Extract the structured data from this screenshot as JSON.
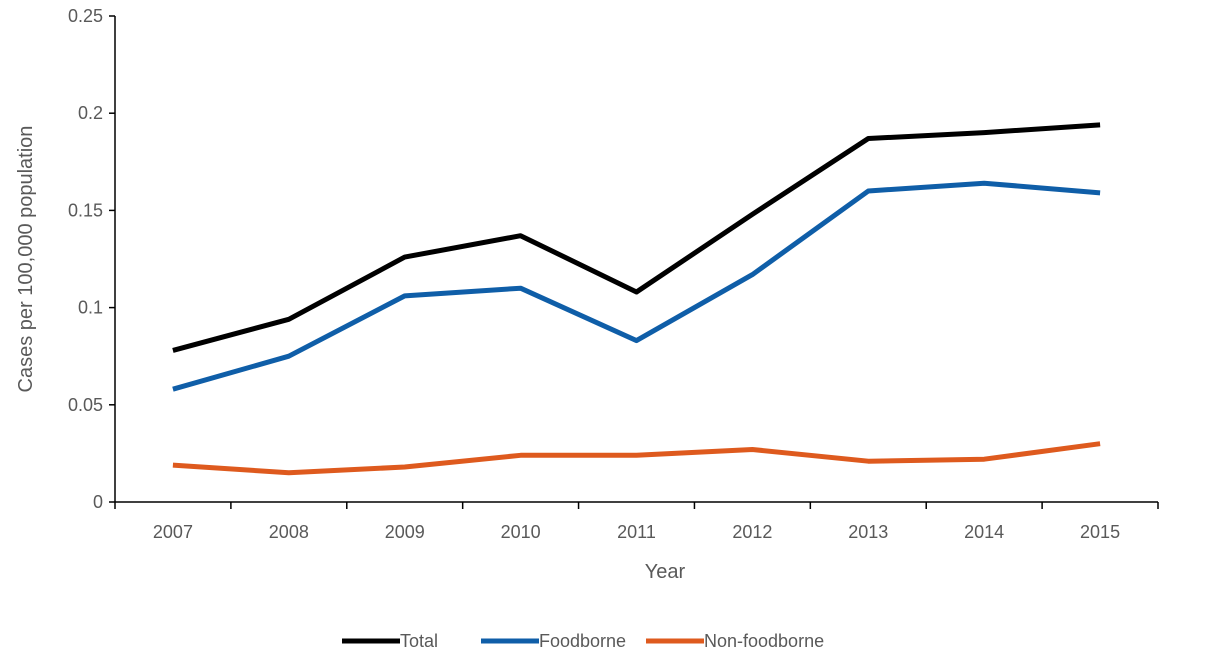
{
  "chart_data": {
    "type": "line",
    "title": "",
    "xlabel": "Year",
    "ylabel": "Cases per 100,000 population",
    "categories": [
      "2007",
      "2008",
      "2009",
      "2010",
      "2011",
      "2012",
      "2013",
      "2014",
      "2015"
    ],
    "ylim": [
      0,
      0.25
    ],
    "yticks": [
      "0",
      "0.05",
      "0.1",
      "0.15",
      "0.2",
      "0.25"
    ],
    "ytick_values": [
      0,
      0.05,
      0.1,
      0.15,
      0.2,
      0.25
    ],
    "grid": false,
    "legend_position": "bottom",
    "series": [
      {
        "name": "Total",
        "color": "#000000",
        "values": [
          0.078,
          0.094,
          0.126,
          0.137,
          0.108,
          0.148,
          0.187,
          0.19,
          0.194
        ]
      },
      {
        "name": "Foodborne",
        "color": "#0f5ea8",
        "values": [
          0.058,
          0.075,
          0.106,
          0.11,
          0.083,
          0.117,
          0.16,
          0.164,
          0.159
        ]
      },
      {
        "name": "Non-foodborne",
        "color": "#de5a1e",
        "values": [
          0.019,
          0.015,
          0.018,
          0.024,
          0.024,
          0.027,
          0.021,
          0.022,
          0.03
        ]
      }
    ]
  }
}
